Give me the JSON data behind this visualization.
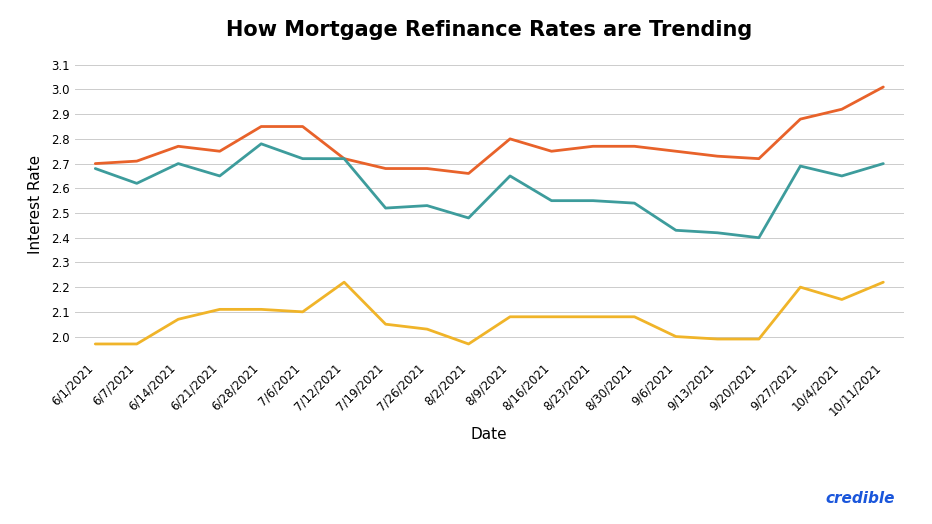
{
  "title": "How Mortgage Refinance Rates are Trending",
  "xlabel": "Date",
  "ylabel": "Interest Rate",
  "background_color": "#ffffff",
  "grid_color": "#cccccc",
  "dates": [
    "6/1/2021",
    "6/7/2021",
    "6/14/2021",
    "6/21/2021",
    "6/28/2021",
    "7/6/2021",
    "7/12/2021",
    "7/19/2021",
    "7/26/2021",
    "8/2/2021",
    "8/9/2021",
    "8/16/2021",
    "8/23/2021",
    "8/30/2021",
    "9/6/2021",
    "9/13/2021",
    "9/20/2021",
    "9/27/2021",
    "10/4/2021",
    "10/11/2021"
  ],
  "rate_30yr": [
    2.7,
    2.71,
    2.77,
    2.75,
    2.85,
    2.85,
    2.72,
    2.68,
    2.68,
    2.66,
    2.8,
    2.75,
    2.77,
    2.77,
    2.75,
    2.73,
    2.72,
    2.88,
    2.92,
    3.01
  ],
  "rate_20yr": [
    2.68,
    2.62,
    2.7,
    2.65,
    2.78,
    2.72,
    2.72,
    2.52,
    2.53,
    2.48,
    2.65,
    2.55,
    2.55,
    2.54,
    2.43,
    2.42,
    2.4,
    2.69,
    2.65,
    2.7
  ],
  "rate_15yr": [
    1.97,
    1.97,
    2.07,
    2.11,
    2.11,
    2.1,
    2.22,
    2.05,
    2.03,
    1.97,
    2.08,
    2.08,
    2.08,
    2.08,
    2.0,
    1.99,
    1.99,
    2.2,
    2.15,
    2.22
  ],
  "color_30yr": "#E8622A",
  "color_20yr": "#3D9C9C",
  "color_15yr": "#F0B429",
  "ylim_min": 1.92,
  "ylim_max": 3.15,
  "yticks": [
    2.0,
    2.1,
    2.2,
    2.3,
    2.4,
    2.5,
    2.6,
    2.7,
    2.8,
    2.9,
    3.0,
    3.1
  ],
  "title_fontsize": 15,
  "axis_label_fontsize": 11,
  "tick_fontsize": 8.5,
  "legend_fontsize": 10,
  "line_width": 2.0,
  "credible_color": "#1a56db",
  "credible_text": "credible"
}
